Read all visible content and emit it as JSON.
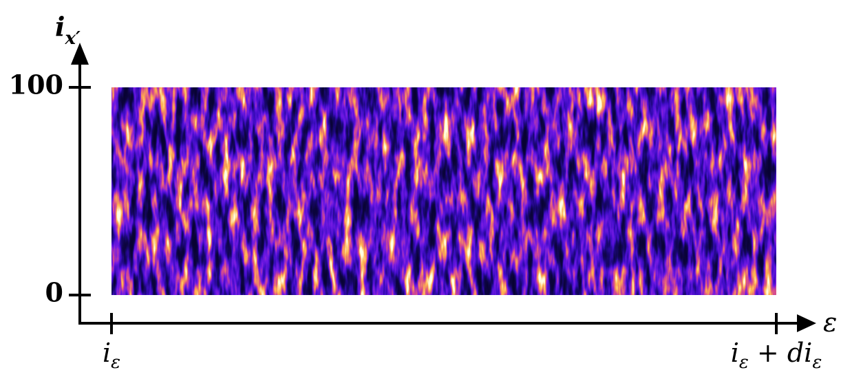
{
  "chart_data": {
    "type": "heatmap",
    "y_label": {
      "base": "i",
      "sub": "x′"
    },
    "x_label": "ε",
    "ylim": [
      0,
      100
    ],
    "yticks": [
      0,
      100
    ],
    "categories": [
      {
        "base": "i",
        "sub": "ε"
      },
      {
        "base": "i",
        "sub": "ε",
        "rest": " + di",
        "sub2": "ε"
      }
    ]
  }
}
